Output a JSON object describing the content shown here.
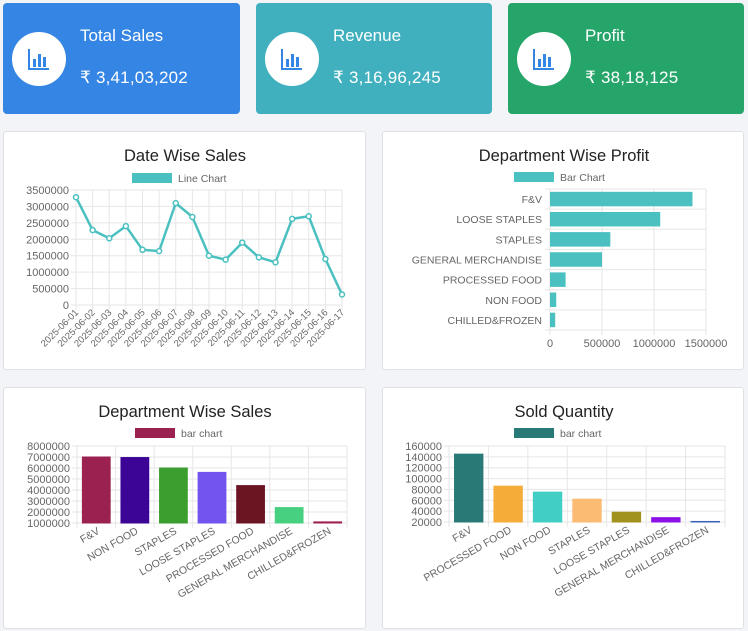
{
  "kpis": {
    "total_sales": {
      "title": "Total Sales",
      "value": "₹ 3,41,03,202"
    },
    "revenue": {
      "title": "Revenue",
      "value": "₹ 3,16,96,245"
    },
    "profit": {
      "title": "Profit",
      "value": "₹ 38,18,125"
    },
    "icon": "bar-chart-icon",
    "colors": {
      "sales": "#3585e4",
      "revenue": "#40b0bf",
      "profit": "#26a56a"
    }
  },
  "chart_data": [
    {
      "id": "date-wise-sales",
      "type": "line",
      "title": "Date Wise Sales",
      "legend": "Line Chart",
      "color": "#4bc0c0",
      "categories": [
        "2025-06-01",
        "2025-06-02",
        "2025-06-03",
        "2025-06-04",
        "2025-06-05",
        "2025-06-06",
        "2025-06-07",
        "2025-06-08",
        "2025-06-09",
        "2025-06-10",
        "2025-06-11",
        "2025-06-12",
        "2025-06-13",
        "2025-06-14",
        "2025-06-15",
        "2025-06-16",
        "2025-06-17"
      ],
      "values": [
        3280000,
        2280000,
        2030000,
        2400000,
        1680000,
        1640000,
        3100000,
        2680000,
        1500000,
        1380000,
        1900000,
        1450000,
        1300000,
        2620000,
        2700000,
        1400000,
        320000
      ],
      "ylim": [
        0,
        3500000
      ],
      "yticks": [
        "0",
        "500000",
        "1000000",
        "1500000",
        "2000000",
        "2500000",
        "3000000",
        "3500000"
      ]
    },
    {
      "id": "department-wise-profit",
      "type": "bar",
      "orientation": "horizontal",
      "title": "Department Wise Profit",
      "legend": "Bar Chart",
      "color": "#4bc0c0",
      "categories": [
        "F&V",
        "LOOSE STAPLES",
        "STAPLES",
        "GENERAL MERCHANDISE",
        "PROCESSED FOOD",
        "NON FOOD",
        "CHILLED&FROZEN"
      ],
      "values": [
        1370000,
        1060000,
        580000,
        500000,
        150000,
        60000,
        50000
      ],
      "xlim": [
        0,
        1500000
      ],
      "xticks": [
        "0",
        "500000",
        "1000000",
        "1500000"
      ]
    },
    {
      "id": "department-wise-sales",
      "type": "bar",
      "title": "Department Wise Sales",
      "legend": "bar chart",
      "legend_color": "#9b2151",
      "categories": [
        "F&V",
        "NON FOOD",
        "STAPLES",
        "LOOSE STAPLES",
        "PROCESSED FOOD",
        "GENERAL MERCHANDISE",
        "CHILLED&FROZEN"
      ],
      "values": [
        7000000,
        6950000,
        6000000,
        5600000,
        4400000,
        2400000,
        1100000
      ],
      "colors": [
        "#9b2151",
        "#3c0596",
        "#3b9e2f",
        "#7354ef",
        "#6b1523",
        "#47d07f",
        "#9b2151"
      ],
      "ylim": [
        1000000,
        8000000
      ],
      "yticks": [
        "1000000",
        "2000000",
        "3000000",
        "4000000",
        "5000000",
        "6000000",
        "7000000",
        "8000000"
      ]
    },
    {
      "id": "sold-quantity",
      "type": "bar",
      "title": "Sold Quantity",
      "legend": "bar chart",
      "legend_color": "#297a77",
      "categories": [
        "F&V",
        "PROCESSED FOOD",
        "NON FOOD",
        "STAPLES",
        "LOOSE STAPLES",
        "GENERAL MERCHANDISE",
        "CHILLED&FROZEN"
      ],
      "values": [
        145000,
        86000,
        75000,
        62000,
        38000,
        28000,
        21000
      ],
      "colors": [
        "#297a77",
        "#f5ac38",
        "#41cfc5",
        "#fbbb73",
        "#a1921d",
        "#8d10e6",
        "#3b60b8"
      ],
      "ylim": [
        20000,
        160000
      ],
      "yticks": [
        "20000",
        "40000",
        "60000",
        "80000",
        "100000",
        "120000",
        "140000",
        "160000"
      ]
    }
  ]
}
